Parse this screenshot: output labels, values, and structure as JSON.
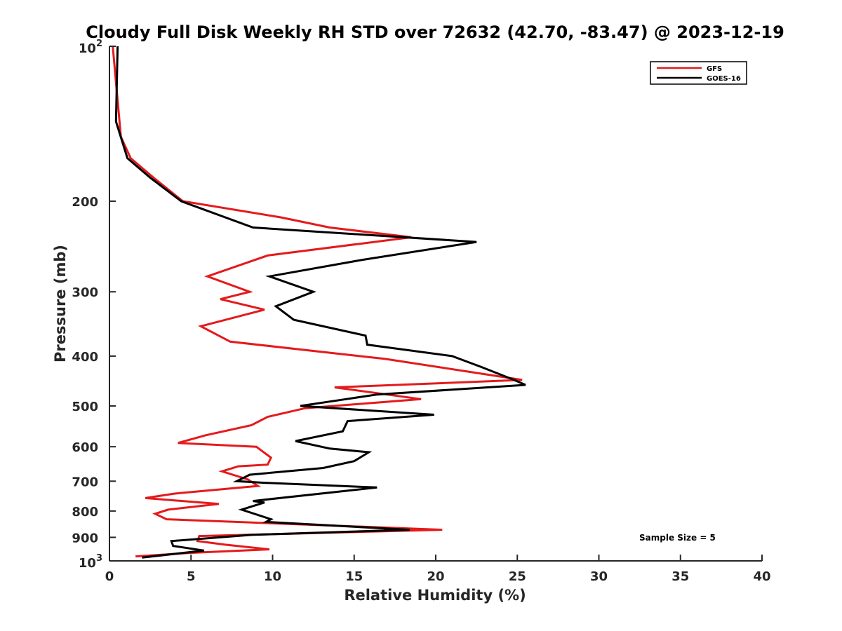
{
  "chart_data": {
    "type": "line",
    "title": "Cloudy Full Disk Weekly RH STD over 72632 (42.70, -83.47) @ 2023-12-19",
    "xlabel": "Relative Humidity (%)",
    "ylabel": "Pressure (mb)",
    "xlim": [
      0,
      40
    ],
    "ylim": [
      100,
      1000
    ],
    "y_scale": "log",
    "y_reversed": true,
    "x_ticks": [
      "0",
      "5",
      "10",
      "15",
      "20",
      "25",
      "30",
      "35",
      "40"
    ],
    "y_ticks": [
      {
        "value": 100,
        "base": "10",
        "exp": "2"
      },
      {
        "value": 200,
        "label": "200"
      },
      {
        "value": 300,
        "label": "300"
      },
      {
        "value": 400,
        "label": "400"
      },
      {
        "value": 500,
        "label": "500"
      },
      {
        "value": 600,
        "label": "600"
      },
      {
        "value": 700,
        "label": "700"
      },
      {
        "value": 800,
        "label": "800"
      },
      {
        "value": 900,
        "label": "900"
      },
      {
        "value": 1000,
        "base": "10",
        "exp": "3"
      }
    ],
    "grid": false,
    "legend_position": "top-right",
    "series": [
      {
        "name": "GFS",
        "color": "#e41a1c",
        "points": [
          [
            0.2,
            100
          ],
          [
            0.7,
            150
          ],
          [
            1.3,
            165
          ],
          [
            2.7,
            180
          ],
          [
            4.5,
            200
          ],
          [
            10.5,
            215
          ],
          [
            13.5,
            225
          ],
          [
            18.5,
            235
          ],
          [
            9.7,
            255
          ],
          [
            6.0,
            280
          ],
          [
            8.6,
            300
          ],
          [
            6.8,
            310
          ],
          [
            9.5,
            325
          ],
          [
            5.6,
            350
          ],
          [
            7.4,
            375
          ],
          [
            16.9,
            405
          ],
          [
            25.3,
            445
          ],
          [
            13.8,
            460
          ],
          [
            19.1,
            485
          ],
          [
            12.0,
            505
          ],
          [
            9.7,
            525
          ],
          [
            8.7,
            545
          ],
          [
            5.9,
            570
          ],
          [
            4.2,
            590
          ],
          [
            9.0,
            600
          ],
          [
            9.9,
            630
          ],
          [
            9.7,
            650
          ],
          [
            7.9,
            655
          ],
          [
            6.9,
            670
          ],
          [
            8.5,
            695
          ],
          [
            9.1,
            715
          ],
          [
            4.0,
            740
          ],
          [
            2.2,
            755
          ],
          [
            6.7,
            775
          ],
          [
            3.6,
            795
          ],
          [
            2.8,
            810
          ],
          [
            3.5,
            830
          ],
          [
            20.4,
            870
          ],
          [
            5.5,
            895
          ],
          [
            5.4,
            915
          ],
          [
            7.1,
            930
          ],
          [
            9.8,
            950
          ],
          [
            4.9,
            965
          ],
          [
            1.6,
            980
          ]
        ]
      },
      {
        "name": "GOES-16",
        "color": "#000000",
        "points": [
          [
            0.5,
            100
          ],
          [
            0.4,
            140
          ],
          [
            1.1,
            165
          ],
          [
            2.5,
            180
          ],
          [
            4.4,
            200
          ],
          [
            8.8,
            225
          ],
          [
            22.5,
            240
          ],
          [
            15.5,
            260
          ],
          [
            9.8,
            280
          ],
          [
            12.5,
            300
          ],
          [
            10.2,
            320
          ],
          [
            11.3,
            340
          ],
          [
            15.7,
            365
          ],
          [
            15.8,
            380
          ],
          [
            21.0,
            400
          ],
          [
            22.8,
            420
          ],
          [
            24.8,
            445
          ],
          [
            25.5,
            455
          ],
          [
            16.4,
            475
          ],
          [
            14.5,
            485
          ],
          [
            11.7,
            500
          ],
          [
            19.9,
            520
          ],
          [
            14.6,
            535
          ],
          [
            14.3,
            560
          ],
          [
            11.4,
            585
          ],
          [
            13.5,
            605
          ],
          [
            15.9,
            615
          ],
          [
            15.0,
            640
          ],
          [
            13.1,
            660
          ],
          [
            8.6,
            680
          ],
          [
            7.8,
            700
          ],
          [
            9.5,
            705
          ],
          [
            16.4,
            720
          ],
          [
            9.6,
            760
          ],
          [
            8.8,
            765
          ],
          [
            9.5,
            770
          ],
          [
            8.1,
            795
          ],
          [
            9.9,
            830
          ],
          [
            9.6,
            840
          ],
          [
            18.4,
            870
          ],
          [
            8.7,
            890
          ],
          [
            3.8,
            915
          ],
          [
            3.9,
            935
          ],
          [
            5.8,
            955
          ],
          [
            2.0,
            985
          ]
        ]
      }
    ],
    "annotation": "Sample Size = 5"
  }
}
